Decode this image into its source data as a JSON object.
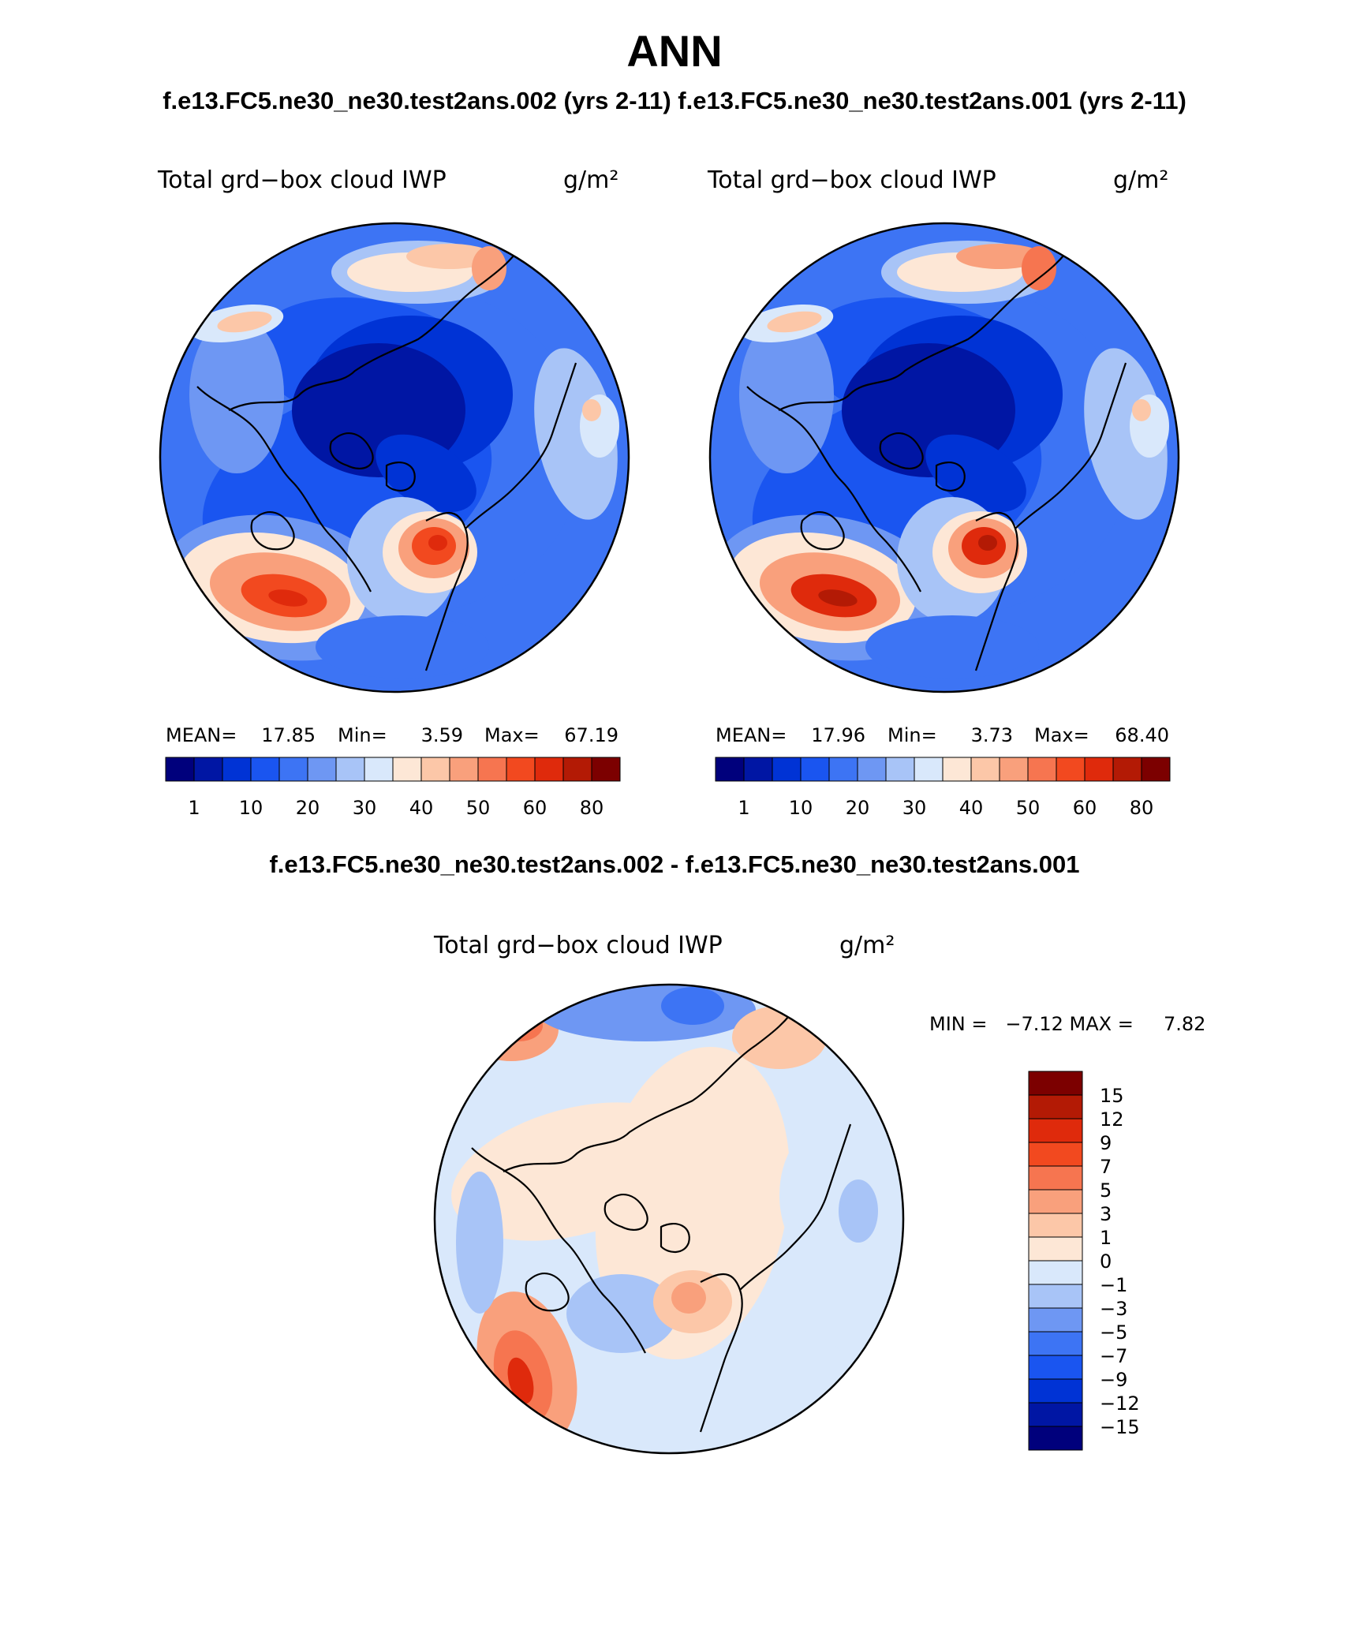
{
  "figure": {
    "title": "ANN",
    "case_titles": "f.e13.FC5.ne30_ne30.test2ans.002 (yrs 2-11) f.e13.FC5.ne30_ne30.test2ans.001 (yrs 2-11)",
    "diff_title": "f.e13.FC5.ne30_ne30.test2ans.002 - f.e13.FC5.ne30_ne30.test2ans.001"
  },
  "panels": [
    {
      "variable": "Total grd−box cloud IWP",
      "units": "g/m²",
      "stats": {
        "mean_label": "MEAN=",
        "mean": "17.85",
        "min_label": "Min=",
        "min": "3.59",
        "max_label": "Max=",
        "max": "67.19"
      }
    },
    {
      "variable": "Total grd−box cloud IWP",
      "units": "g/m²",
      "stats": {
        "mean_label": "MEAN=",
        "mean": "17.96",
        "min_label": "Min=",
        "min": "3.73",
        "max_label": "Max=",
        "max": "68.40"
      }
    },
    {
      "variable": "Total grd−box cloud IWP",
      "units": "g/m²",
      "stats_text": "MIN =   −7.12 MAX =     7.82"
    }
  ],
  "chart_data": [
    {
      "type": "heatmap",
      "projection": "north polar stereographic",
      "color_levels": [
        "1",
        "5",
        "10",
        "15",
        "20",
        "25",
        "30",
        "35",
        "40",
        "45",
        "50",
        "55",
        "60",
        "70",
        "80"
      ],
      "colorbar_labels": [
        "1",
        "10",
        "20",
        "30",
        "40",
        "50",
        "60",
        "80"
      ],
      "colors": [
        "#00007c",
        "#0016a4",
        "#0033d5",
        "#1a55f0",
        "#3d74f4",
        "#6e97f3",
        "#a8c4f7",
        "#d9e8fb",
        "#fde7d6",
        "#fcc7a8",
        "#f9a07c",
        "#f67550",
        "#f2491f",
        "#df2a0c",
        "#b31a05",
        "#7c0000"
      ],
      "mean": 17.85,
      "min": 3.59,
      "max": 67.19
    },
    {
      "type": "heatmap",
      "projection": "north polar stereographic",
      "color_levels": [
        "1",
        "5",
        "10",
        "15",
        "20",
        "25",
        "30",
        "35",
        "40",
        "45",
        "50",
        "55",
        "60",
        "70",
        "80"
      ],
      "colorbar_labels": [
        "1",
        "10",
        "20",
        "30",
        "40",
        "50",
        "60",
        "80"
      ],
      "colors": [
        "#00007c",
        "#0016a4",
        "#0033d5",
        "#1a55f0",
        "#3d74f4",
        "#6e97f3",
        "#a8c4f7",
        "#d9e8fb",
        "#fde7d6",
        "#fcc7a8",
        "#f9a07c",
        "#f67550",
        "#f2491f",
        "#df2a0c",
        "#b31a05",
        "#7c0000"
      ],
      "mean": 17.96,
      "min": 3.73,
      "max": 68.4
    },
    {
      "type": "heatmap",
      "projection": "north polar stereographic",
      "colorbar_labels": [
        "15",
        "12",
        "9",
        "7",
        "5",
        "3",
        "1",
        "0",
        "−1",
        "−3",
        "−5",
        "−7",
        "−9",
        "−12",
        "−15"
      ],
      "colors": [
        "#7c0000",
        "#b31a05",
        "#df2a0c",
        "#f2491f",
        "#f67550",
        "#f9a07c",
        "#fcc7a8",
        "#fde7d6",
        "#d9e8fb",
        "#a8c4f7",
        "#6e97f3",
        "#3d74f4",
        "#1a55f0",
        "#0033d5",
        "#0016a4",
        "#00007c"
      ],
      "min": -7.12,
      "max": 7.82
    }
  ]
}
